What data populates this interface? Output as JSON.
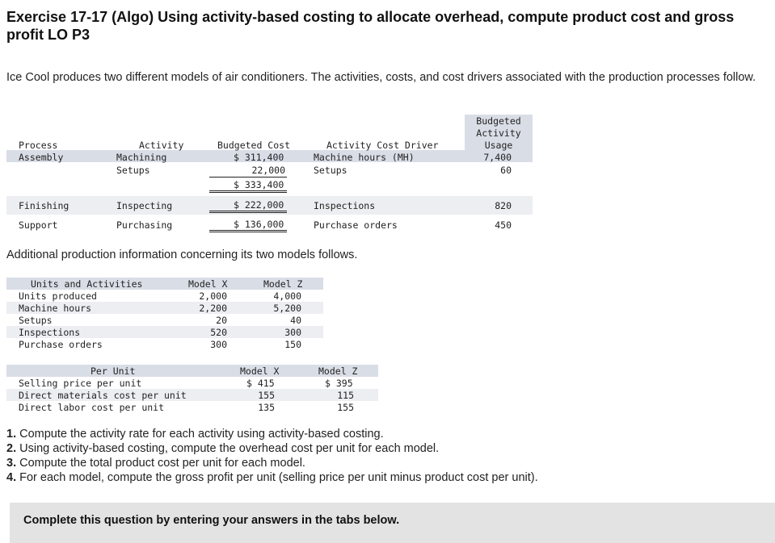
{
  "title": "Exercise 17-17 (Algo) Using activity-based costing to allocate overhead, compute product cost and gross profit LO P3",
  "intro": "Ice Cool produces two different models of air conditioners. The activities, costs, and cost drivers associated with the production processes follow.",
  "table1": {
    "headers": {
      "process": "Process",
      "activity": "Activity",
      "cost": "Budgeted Cost",
      "driver": "Activity Cost Driver",
      "usage1": "Budgeted",
      "usage2": "Activity",
      "usage3": "Usage"
    },
    "rows": [
      {
        "process": "Assembly",
        "activity": "Machining",
        "cost": "$ 311,400",
        "driver": "Machine hours (MH)",
        "usage": "7,400"
      },
      {
        "process": "",
        "activity": "Setups",
        "cost": "22,000",
        "driver": "Setups",
        "usage": "60"
      },
      {
        "process": "",
        "activity": "",
        "cost": "$ 333,400",
        "driver": "",
        "usage": ""
      },
      {
        "process": "Finishing",
        "activity": "Inspecting",
        "cost": "$ 222,000",
        "driver": "Inspections",
        "usage": "820"
      },
      {
        "process": "Support",
        "activity": "Purchasing",
        "cost": "$ 136,000",
        "driver": "Purchase orders",
        "usage": "450"
      }
    ]
  },
  "additional": "Additional production information concerning its two models follows.",
  "table2": {
    "headers": {
      "label": "Units and Activities",
      "x": "Model X",
      "z": "Model Z"
    },
    "rows": [
      {
        "label": "Units produced",
        "x": "2,000",
        "z": "4,000"
      },
      {
        "label": "Machine hours",
        "x": "2,200",
        "z": "5,200"
      },
      {
        "label": "Setups",
        "x": "20",
        "z": "40"
      },
      {
        "label": "Inspections",
        "x": "520",
        "z": "300"
      },
      {
        "label": "Purchase orders",
        "x": "300",
        "z": "150"
      }
    ]
  },
  "table3": {
    "headers": {
      "label": "Per Unit",
      "x": "Model X",
      "z": "Model Z"
    },
    "rows": [
      {
        "label": "Selling price per unit",
        "x": "$ 415",
        "z": "$ 395"
      },
      {
        "label": "Direct materials cost per unit",
        "x": "155",
        "z": "115"
      },
      {
        "label": "Direct labor cost per unit",
        "x": "135",
        "z": "155"
      }
    ]
  },
  "questions": [
    {
      "num": "1.",
      "text": " Compute the activity rate for each activity using activity-based costing."
    },
    {
      "num": "2.",
      "text": " Using activity-based costing, compute the overhead cost per unit for each model."
    },
    {
      "num": "3.",
      "text": " Compute the total product cost per unit for each model."
    },
    {
      "num": "4.",
      "text": " For each model, compute the gross profit per unit (selling price per unit minus product cost per unit)."
    }
  ],
  "footer": "Complete this question by entering your answers in the tabs below."
}
